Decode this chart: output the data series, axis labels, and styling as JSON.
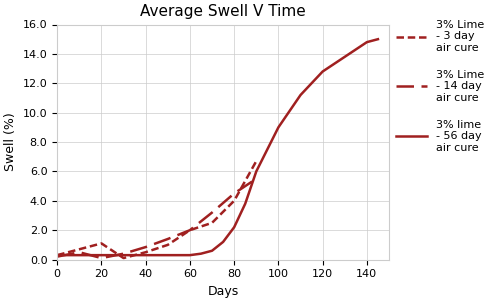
{
  "title": "Average Swell V Time",
  "xlabel": "Days",
  "ylabel": "Swell (%)",
  "xlim": [
    0,
    150
  ],
  "ylim": [
    0.0,
    16.0
  ],
  "xticks": [
    0,
    20,
    40,
    60,
    80,
    100,
    120,
    140
  ],
  "yticks": [
    0.0,
    2.0,
    4.0,
    6.0,
    8.0,
    10.0,
    12.0,
    14.0,
    16.0
  ],
  "line_color": "#a02020",
  "series": [
    {
      "label": "3% Lime\n- 3 day\nair cure",
      "linestyle": "dashed_short",
      "x": [
        0,
        10,
        20,
        30,
        40,
        50,
        60,
        70,
        80,
        90
      ],
      "y": [
        0.3,
        0.7,
        1.1,
        0.1,
        0.5,
        1.0,
        2.0,
        2.5,
        4.0,
        6.7
      ]
    },
    {
      "label": "3% Lime\n- 14 day\nair cure",
      "linestyle": "dashed_long",
      "x": [
        0,
        10,
        20,
        30,
        40,
        50,
        60,
        70,
        80,
        90
      ],
      "y": [
        0.2,
        0.5,
        0.1,
        0.4,
        0.85,
        1.4,
        2.0,
        3.2,
        4.5,
        5.5
      ]
    },
    {
      "label": "3% lime\n- 56 day\nair cure",
      "linestyle": "solid",
      "x": [
        0,
        60,
        65,
        70,
        75,
        80,
        85,
        90,
        95,
        100,
        110,
        120,
        130,
        140,
        145
      ],
      "y": [
        0.3,
        0.3,
        0.4,
        0.6,
        1.2,
        2.2,
        3.8,
        6.0,
        7.5,
        9.0,
        11.2,
        12.8,
        13.8,
        14.8,
        15.0
      ]
    }
  ],
  "background_color": "#ffffff",
  "grid_color": "#cccccc",
  "figsize": [
    4.89,
    3.02
  ],
  "dpi": 100
}
